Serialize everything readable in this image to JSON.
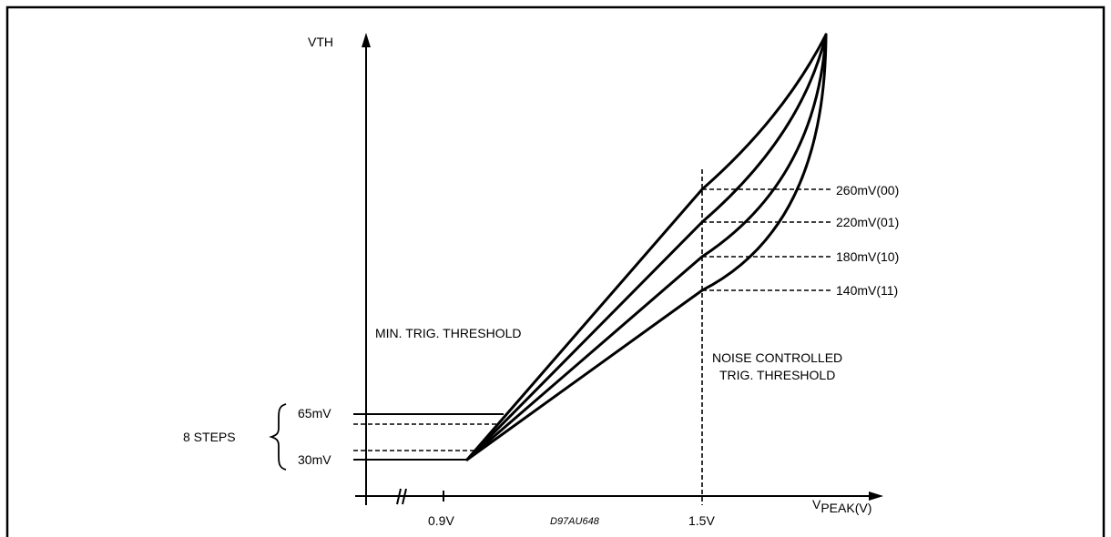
{
  "y_axis_label": "VTH",
  "x_axis_label_main": "V",
  "x_axis_label_sub": "PEAK(V)",
  "x_ticks": [
    "0.9V",
    "1.5V"
  ],
  "code": "D97AU648",
  "min_threshold_label": "MIN. TRIG. THRESHOLD",
  "noise_label_line1": "NOISE CONTROLLED",
  "noise_label_line2": "TRIG. THRESHOLD",
  "steps_label": "8 STEPS",
  "min_levels": [
    "65mV",
    "30mV"
  ],
  "noise_levels": [
    "260mV(00)",
    "220mV(01)",
    "180mV(10)",
    "140mV(11)"
  ]
}
